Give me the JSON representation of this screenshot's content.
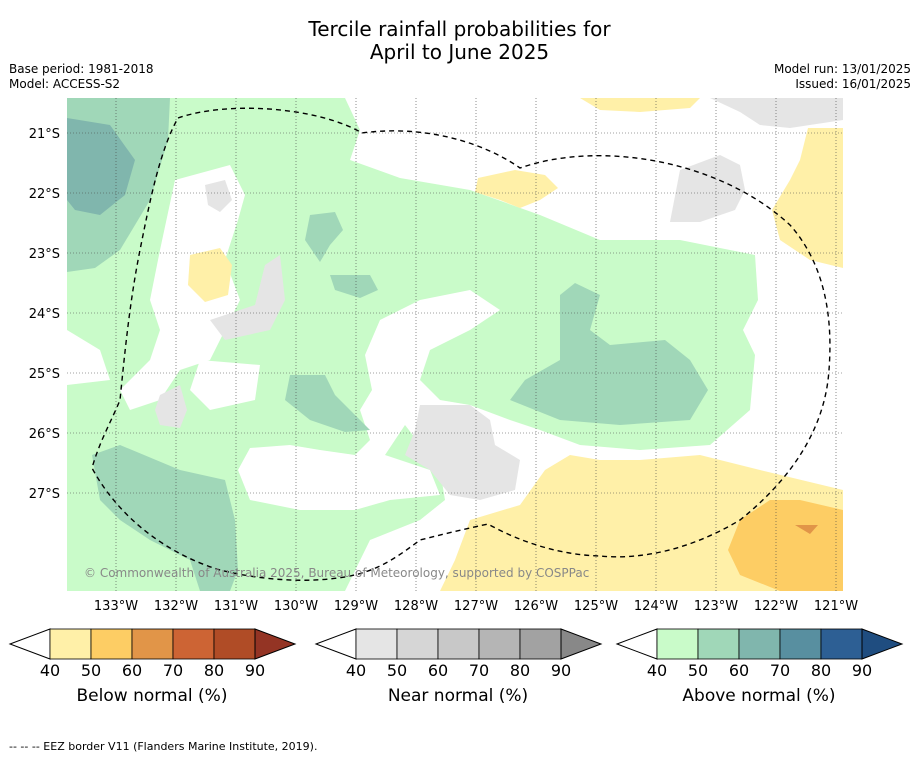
{
  "title_line1": "Tercile rainfall probabilities for",
  "title_line2": "April to June 2025",
  "meta_left": [
    "Base period: 1981-2018",
    "Model: ACCESS-S2"
  ],
  "meta_right": [
    "Model run: 13/01/2025",
    "Issued: 16/01/2025"
  ],
  "lat_labels": [
    "21°S",
    "22°S",
    "23°S",
    "24°S",
    "25°S",
    "26°S",
    "27°S"
  ],
  "lon_labels": [
    "133°W",
    "132°W",
    "131°W",
    "130°W",
    "129°W",
    "128°W",
    "127°W",
    "126°W",
    "125°W",
    "124°W",
    "123°W",
    "122°W",
    "121°W"
  ],
  "copyright": "© Commonwealth of Australia 2025, Bureau of Meteorology, supported by COSPPac",
  "colorbars": [
    {
      "label": "Below normal (%)",
      "ticks": [
        "40",
        "50",
        "60",
        "70",
        "80",
        "90"
      ],
      "colors": [
        "#fff0a8",
        "#fdcd64",
        "#e19548",
        "#cd6434",
        "#b04c26",
        "#943424"
      ]
    },
    {
      "label": "Near normal (%)",
      "ticks": [
        "40",
        "50",
        "60",
        "70",
        "80",
        "90"
      ],
      "colors": [
        "#e5e5e5",
        "#d6d6d6",
        "#c8c8c8",
        "#b5b5b5",
        "#a2a2a2",
        "#888888"
      ]
    },
    {
      "label": "Above normal (%)",
      "ticks": [
        "40",
        "50",
        "60",
        "70",
        "80",
        "90"
      ],
      "colors": [
        "#c9fbc9",
        "#a0d7b8",
        "#80b6ad",
        "#588fa0",
        "#2d5f94",
        "#1f4d80"
      ]
    }
  ],
  "footer": "-- -- -- EEZ border V11 (Flanders Marine Institute, 2019)."
}
